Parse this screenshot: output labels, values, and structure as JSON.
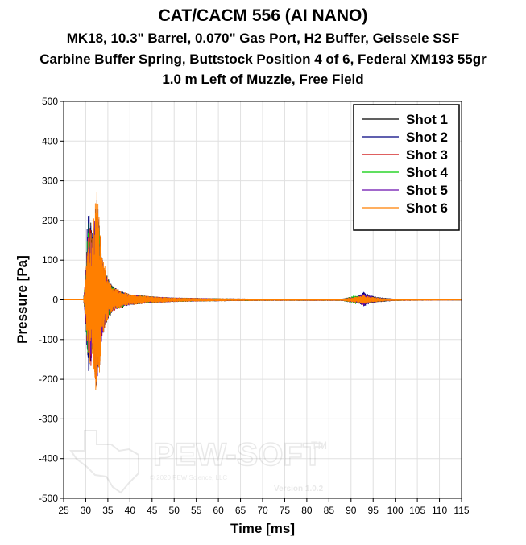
{
  "chart_data": {
    "type": "line",
    "title": "CAT/CACM 556 (AI NANO)",
    "subtitle_lines": [
      "MK18, 10.3\" Barrel, 0.070\" Gas Port, H2 Buffer, Geissele SSF",
      "Carbine Buffer Spring, Buttstock Position 4 of 6, Federal XM193 55gr",
      "1.0 m Left of Muzzle, Free Field"
    ],
    "xlabel": "Time [ms]",
    "ylabel": "Pressure [Pa]",
    "xlim": [
      25,
      115
    ],
    "ylim": [
      -500,
      500
    ],
    "xticks": [
      25,
      30,
      35,
      40,
      45,
      50,
      55,
      60,
      65,
      70,
      75,
      80,
      85,
      90,
      95,
      100,
      105,
      110,
      115
    ],
    "yticks": [
      500,
      400,
      300,
      200,
      100,
      0,
      -100,
      -200,
      -300,
      -400,
      -500
    ],
    "grid": true,
    "legend_position": "top-right",
    "series": [
      {
        "name": "Shot 1",
        "color": "#000000",
        "envelope": [
          [
            25,
            0
          ],
          [
            29.5,
            0
          ],
          [
            30,
            60
          ],
          [
            30.5,
            180
          ],
          [
            31,
            210
          ],
          [
            31.5,
            170
          ],
          [
            32,
            200
          ],
          [
            32.5,
            230
          ],
          [
            33,
            200
          ],
          [
            33.5,
            120
          ],
          [
            34,
            90
          ],
          [
            35,
            55
          ],
          [
            36,
            35
          ],
          [
            38,
            22
          ],
          [
            40,
            14
          ],
          [
            45,
            8
          ],
          [
            50,
            5
          ],
          [
            55,
            4
          ],
          [
            60,
            3
          ],
          [
            70,
            2
          ],
          [
            80,
            2
          ],
          [
            88,
            2
          ],
          [
            89.5,
            6
          ],
          [
            91,
            8
          ],
          [
            92,
            10
          ],
          [
            93,
            15
          ],
          [
            94,
            10
          ],
          [
            96,
            6
          ],
          [
            98,
            4
          ],
          [
            100,
            2
          ],
          [
            115,
            1
          ]
        ]
      },
      {
        "name": "Shot 2",
        "color": "#00007f",
        "envelope": [
          [
            25,
            0
          ],
          [
            29.5,
            0
          ],
          [
            30,
            80
          ],
          [
            30.5,
            240
          ],
          [
            31,
            200
          ],
          [
            31.5,
            170
          ],
          [
            32,
            240
          ],
          [
            32.5,
            260
          ],
          [
            33,
            210
          ],
          [
            33.5,
            130
          ],
          [
            34,
            95
          ],
          [
            35,
            55
          ],
          [
            36,
            35
          ],
          [
            38,
            22
          ],
          [
            40,
            14
          ],
          [
            45,
            8
          ],
          [
            50,
            5
          ],
          [
            55,
            4
          ],
          [
            60,
            3
          ],
          [
            70,
            2
          ],
          [
            80,
            2
          ],
          [
            88,
            2
          ],
          [
            89.5,
            6
          ],
          [
            91,
            8
          ],
          [
            92,
            12
          ],
          [
            93,
            20
          ],
          [
            94,
            12
          ],
          [
            96,
            6
          ],
          [
            98,
            4
          ],
          [
            100,
            2
          ],
          [
            115,
            1
          ]
        ]
      },
      {
        "name": "Shot 3",
        "color": "#cc0000",
        "envelope": [
          [
            25,
            0
          ],
          [
            29.5,
            0
          ],
          [
            30,
            60
          ],
          [
            30.5,
            170
          ],
          [
            31,
            190
          ],
          [
            31.5,
            160
          ],
          [
            32,
            220
          ],
          [
            32.5,
            240
          ],
          [
            33,
            200
          ],
          [
            33.5,
            120
          ],
          [
            34,
            85
          ],
          [
            35,
            50
          ],
          [
            36,
            32
          ],
          [
            38,
            20
          ],
          [
            40,
            13
          ],
          [
            45,
            8
          ],
          [
            50,
            5
          ],
          [
            55,
            4
          ],
          [
            60,
            3
          ],
          [
            70,
            2
          ],
          [
            80,
            2
          ],
          [
            88,
            2
          ],
          [
            89.5,
            5
          ],
          [
            91,
            7
          ],
          [
            92,
            10
          ],
          [
            93,
            14
          ],
          [
            94,
            9
          ],
          [
            96,
            5
          ],
          [
            98,
            3
          ],
          [
            100,
            2
          ],
          [
            115,
            1
          ]
        ]
      },
      {
        "name": "Shot 4",
        "color": "#00cc00",
        "envelope": [
          [
            25,
            0
          ],
          [
            29.5,
            0
          ],
          [
            30,
            70
          ],
          [
            30.5,
            200
          ],
          [
            31,
            180
          ],
          [
            31.5,
            150
          ],
          [
            32,
            200
          ],
          [
            32.5,
            220
          ],
          [
            33,
            190
          ],
          [
            33.5,
            110
          ],
          [
            34,
            80
          ],
          [
            35,
            50
          ],
          [
            36,
            32
          ],
          [
            38,
            20
          ],
          [
            40,
            13
          ],
          [
            45,
            8
          ],
          [
            50,
            5
          ],
          [
            55,
            4
          ],
          [
            60,
            3
          ],
          [
            70,
            2
          ],
          [
            80,
            2
          ],
          [
            88,
            2
          ],
          [
            89.5,
            6
          ],
          [
            91,
            12
          ],
          [
            92,
            9
          ],
          [
            93,
            12
          ],
          [
            94,
            8
          ],
          [
            96,
            5
          ],
          [
            98,
            3
          ],
          [
            100,
            2
          ],
          [
            115,
            1
          ]
        ]
      },
      {
        "name": "Shot 5",
        "color": "#6a0dad",
        "envelope": [
          [
            25,
            0
          ],
          [
            29.5,
            0
          ],
          [
            30,
            60
          ],
          [
            30.5,
            170
          ],
          [
            31,
            180
          ],
          [
            31.5,
            150
          ],
          [
            32,
            210
          ],
          [
            32.5,
            250
          ],
          [
            33,
            200
          ],
          [
            33.5,
            120
          ],
          [
            34,
            85
          ],
          [
            35,
            50
          ],
          [
            36,
            32
          ],
          [
            38,
            20
          ],
          [
            40,
            13
          ],
          [
            45,
            8
          ],
          [
            50,
            5
          ],
          [
            55,
            4
          ],
          [
            60,
            3
          ],
          [
            70,
            2
          ],
          [
            80,
            2
          ],
          [
            88,
            2
          ],
          [
            89.5,
            5
          ],
          [
            91,
            7
          ],
          [
            92,
            10
          ],
          [
            93,
            16
          ],
          [
            94,
            10
          ],
          [
            96,
            5
          ],
          [
            98,
            3
          ],
          [
            100,
            2
          ],
          [
            115,
            1
          ]
        ]
      },
      {
        "name": "Shot 6",
        "color": "#ff7f00",
        "envelope": [
          [
            25,
            0
          ],
          [
            29.5,
            0
          ],
          [
            30,
            60
          ],
          [
            30.5,
            160
          ],
          [
            31,
            180
          ],
          [
            31.5,
            160
          ],
          [
            32,
            240
          ],
          [
            32.5,
            290
          ],
          [
            33,
            220
          ],
          [
            33.5,
            150
          ],
          [
            34,
            100
          ],
          [
            35,
            55
          ],
          [
            36,
            35
          ],
          [
            38,
            22
          ],
          [
            40,
            14
          ],
          [
            45,
            8
          ],
          [
            50,
            5
          ],
          [
            55,
            4
          ],
          [
            60,
            3
          ],
          [
            70,
            2
          ],
          [
            80,
            2
          ],
          [
            88,
            2
          ],
          [
            89.5,
            5
          ],
          [
            91,
            7
          ],
          [
            92,
            9
          ],
          [
            93,
            12
          ],
          [
            94,
            8
          ],
          [
            96,
            5
          ],
          [
            98,
            3
          ],
          [
            100,
            2
          ],
          [
            115,
            1
          ]
        ]
      }
    ]
  },
  "watermark": {
    "brand": "PEW-SOFT",
    "trademark": "TM",
    "copyright": "© 2020 PEW Science, LLC",
    "version": "Version 1.0.2"
  }
}
